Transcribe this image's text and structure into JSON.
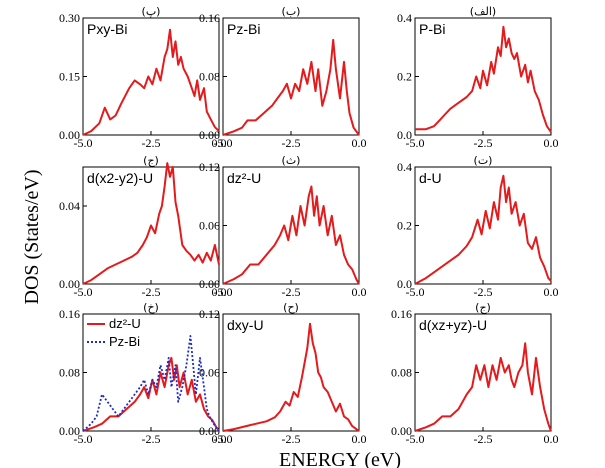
{
  "xlabel": "ENERGY (eV)",
  "ylabel": "DOS (States/eV)",
  "chart_data": [
    {
      "type": "line",
      "title": "(الف)",
      "label": "P-Bi",
      "xlim": [
        -5,
        0
      ],
      "ylim": [
        0,
        0.4
      ],
      "xticks": [
        "-5.0",
        "-2.5",
        "0.0"
      ],
      "yticks": [
        "0.0",
        "0.2",
        "0.4"
      ],
      "series": [
        {
          "name": "P-Bi",
          "color": "#e41a1c",
          "x": [
            -5.0,
            -4.6,
            -4.3,
            -4.1,
            -3.9,
            -3.7,
            -3.4,
            -3.1,
            -2.9,
            -2.75,
            -2.6,
            -2.5,
            -2.35,
            -2.2,
            -2.1,
            -1.95,
            -1.85,
            -1.75,
            -1.65,
            -1.55,
            -1.45,
            -1.35,
            -1.25,
            -1.1,
            -0.95,
            -0.85,
            -0.75,
            -0.6,
            -0.45,
            -0.3,
            -0.15,
            0.0
          ],
          "y": [
            0.02,
            0.02,
            0.03,
            0.05,
            0.07,
            0.09,
            0.11,
            0.13,
            0.15,
            0.2,
            0.16,
            0.22,
            0.17,
            0.25,
            0.21,
            0.3,
            0.27,
            0.37,
            0.3,
            0.33,
            0.28,
            0.26,
            0.28,
            0.2,
            0.24,
            0.18,
            0.22,
            0.15,
            0.12,
            0.07,
            0.03,
            0.01
          ]
        }
      ]
    },
    {
      "type": "line",
      "title": "(ب)",
      "label": "Pz-Bi",
      "xlim": [
        -5,
        0
      ],
      "ylim": [
        0,
        0.16
      ],
      "xticks": [
        "-5.0",
        "-2.5",
        "0.0"
      ],
      "yticks": [
        "0.00",
        "0.08",
        "0.16"
      ],
      "series": [
        {
          "name": "Pz-Bi",
          "color": "#e41a1c",
          "x": [
            -5.0,
            -4.6,
            -4.3,
            -4.1,
            -3.8,
            -3.5,
            -3.2,
            -3.0,
            -2.8,
            -2.65,
            -2.5,
            -2.35,
            -2.2,
            -2.05,
            -1.9,
            -1.75,
            -1.6,
            -1.5,
            -1.35,
            -1.2,
            -1.05,
            -0.95,
            -0.85,
            -0.7,
            -0.55,
            -0.45,
            -0.35,
            -0.2,
            0.0
          ],
          "y": [
            0.0,
            0.005,
            0.01,
            0.02,
            0.02,
            0.03,
            0.04,
            0.05,
            0.06,
            0.07,
            0.05,
            0.07,
            0.06,
            0.09,
            0.07,
            0.1,
            0.06,
            0.09,
            0.04,
            0.06,
            0.09,
            0.13,
            0.09,
            0.05,
            0.1,
            0.06,
            0.03,
            0.01,
            0.0
          ]
        }
      ]
    },
    {
      "type": "line",
      "title": "(پ)",
      "label": "Pxy-Bi",
      "xlim": [
        -5,
        0
      ],
      "ylim": [
        0,
        0.3
      ],
      "xticks": [
        "-5.0",
        "-2.5",
        "0.0"
      ],
      "yticks": [
        "0.00",
        "0.15",
        "0.30"
      ],
      "series": [
        {
          "name": "Pxy-Bi",
          "color": "#e41a1c",
          "x": [
            -5.0,
            -4.7,
            -4.4,
            -4.2,
            -4.0,
            -3.8,
            -3.6,
            -3.3,
            -3.1,
            -2.9,
            -2.75,
            -2.6,
            -2.45,
            -2.3,
            -2.15,
            -2.0,
            -1.9,
            -1.8,
            -1.7,
            -1.6,
            -1.5,
            -1.4,
            -1.3,
            -1.15,
            -1.0,
            -0.9,
            -0.8,
            -0.7,
            -0.55,
            -0.45,
            -0.3,
            -0.15,
            0.0
          ],
          "y": [
            0.0,
            0.01,
            0.03,
            0.07,
            0.04,
            0.05,
            0.08,
            0.12,
            0.14,
            0.13,
            0.12,
            0.15,
            0.13,
            0.17,
            0.14,
            0.2,
            0.22,
            0.27,
            0.2,
            0.24,
            0.18,
            0.2,
            0.17,
            0.15,
            0.12,
            0.1,
            0.14,
            0.09,
            0.12,
            0.06,
            0.04,
            0.02,
            0.01
          ]
        }
      ]
    },
    {
      "type": "line",
      "title": "(ت)",
      "label": "d-U",
      "xlim": [
        -5,
        0
      ],
      "ylim": [
        0,
        0.4
      ],
      "xticks": [
        "-5.0",
        "-2.5",
        "0.0"
      ],
      "yticks": [
        "0.0",
        "0.2",
        "0.4"
      ],
      "series": [
        {
          "name": "d-U",
          "color": "#e41a1c",
          "x": [
            -5.0,
            -4.6,
            -4.3,
            -4.0,
            -3.7,
            -3.4,
            -3.1,
            -2.9,
            -2.7,
            -2.55,
            -2.4,
            -2.25,
            -2.1,
            -1.95,
            -1.85,
            -1.75,
            -1.65,
            -1.55,
            -1.45,
            -1.3,
            -1.15,
            -1.0,
            -0.85,
            -0.7,
            -0.55,
            -0.4,
            -0.25,
            -0.1,
            0.0
          ],
          "y": [
            0.0,
            0.02,
            0.04,
            0.06,
            0.08,
            0.1,
            0.13,
            0.16,
            0.22,
            0.17,
            0.25,
            0.19,
            0.28,
            0.22,
            0.33,
            0.37,
            0.28,
            0.33,
            0.24,
            0.28,
            0.2,
            0.24,
            0.14,
            0.12,
            0.16,
            0.09,
            0.06,
            0.02,
            0.01
          ]
        }
      ]
    },
    {
      "type": "line",
      "title": "(ث)",
      "label": "dz²-U",
      "xlim": [
        -5,
        0
      ],
      "ylim": [
        0,
        0.12
      ],
      "xticks": [
        "-5.0",
        "-2.5",
        "0.0"
      ],
      "yticks": [
        "0.00",
        "0.06",
        "0.12"
      ],
      "series": [
        {
          "name": "dz²-U",
          "color": "#e41a1c",
          "x": [
            -5.0,
            -4.6,
            -4.3,
            -4.0,
            -3.7,
            -3.4,
            -3.1,
            -2.9,
            -2.75,
            -2.6,
            -2.45,
            -2.3,
            -2.15,
            -2.0,
            -1.85,
            -1.75,
            -1.65,
            -1.55,
            -1.45,
            -1.3,
            -1.15,
            -1.0,
            -0.85,
            -0.7,
            -0.55,
            -0.4,
            -0.25,
            -0.1,
            0.0
          ],
          "y": [
            0.0,
            0.005,
            0.01,
            0.02,
            0.02,
            0.03,
            0.04,
            0.05,
            0.06,
            0.045,
            0.07,
            0.05,
            0.08,
            0.06,
            0.09,
            0.1,
            0.07,
            0.09,
            0.06,
            0.08,
            0.05,
            0.07,
            0.04,
            0.05,
            0.03,
            0.02,
            0.015,
            0.005,
            0.0
          ]
        }
      ]
    },
    {
      "type": "line",
      "title": "(ج)",
      "label": "d(x2-y2)-U",
      "xlim": [
        -5,
        0
      ],
      "ylim": [
        0,
        0.06
      ],
      "xticks": [
        "-5.0",
        "-2.5",
        "0.0"
      ],
      "yticks": [
        "0.00",
        "0.04"
      ],
      "series": [
        {
          "name": "d(x2-y2)-U",
          "color": "#e41a1c",
          "x": [
            -5.0,
            -4.7,
            -4.4,
            -4.1,
            -3.8,
            -3.5,
            -3.2,
            -3.0,
            -2.8,
            -2.65,
            -2.5,
            -2.35,
            -2.2,
            -2.1,
            -2.0,
            -1.9,
            -1.8,
            -1.7,
            -1.6,
            -1.5,
            -1.35,
            -1.2,
            -1.05,
            -0.9,
            -0.75,
            -0.6,
            -0.45,
            -0.3,
            -0.15,
            0.0
          ],
          "y": [
            0.0,
            0.002,
            0.005,
            0.008,
            0.01,
            0.012,
            0.014,
            0.016,
            0.02,
            0.024,
            0.03,
            0.026,
            0.036,
            0.04,
            0.05,
            0.062,
            0.055,
            0.06,
            0.042,
            0.035,
            0.02,
            0.017,
            0.015,
            0.012,
            0.015,
            0.011,
            0.016,
            0.012,
            0.02,
            0.01
          ]
        }
      ]
    },
    {
      "type": "line",
      "title": "(ج)",
      "label": "d(xz+yz)-U",
      "xlim": [
        -5,
        0
      ],
      "ylim": [
        0,
        0.16
      ],
      "xticks": [
        "-5.0",
        "-2.5",
        "0.0"
      ],
      "yticks": [
        "0.00",
        "0.08",
        "0.16"
      ],
      "series": [
        {
          "name": "d(xz+yz)-U",
          "color": "#e41a1c",
          "x": [
            -5.0,
            -4.6,
            -4.3,
            -4.0,
            -3.7,
            -3.4,
            -3.1,
            -2.9,
            -2.75,
            -2.6,
            -2.45,
            -2.3,
            -2.15,
            -2.0,
            -1.85,
            -1.7,
            -1.55,
            -1.45,
            -1.35,
            -1.2,
            -1.05,
            -0.95,
            -0.85,
            -0.7,
            -0.55,
            -0.4,
            -0.25,
            -0.1,
            0.0
          ],
          "y": [
            0.0,
            0.005,
            0.01,
            0.02,
            0.02,
            0.03,
            0.05,
            0.06,
            0.09,
            0.07,
            0.09,
            0.06,
            0.09,
            0.07,
            0.1,
            0.08,
            0.09,
            0.07,
            0.06,
            0.08,
            0.09,
            0.12,
            0.08,
            0.05,
            0.1,
            0.06,
            0.03,
            0.01,
            0.0
          ]
        }
      ]
    },
    {
      "type": "line",
      "title": "(ح)",
      "label": "dxy-U",
      "xlim": [
        -5,
        0
      ],
      "ylim": [
        0,
        0.12
      ],
      "xticks": [
        "-5.0",
        "-2.5",
        "0.0"
      ],
      "yticks": [
        "0.00",
        "0.06",
        "0.12"
      ],
      "series": [
        {
          "name": "dxy-U",
          "color": "#e41a1c",
          "x": [
            -5.0,
            -4.6,
            -4.3,
            -4.0,
            -3.7,
            -3.4,
            -3.1,
            -2.9,
            -2.7,
            -2.55,
            -2.4,
            -2.25,
            -2.1,
            -2.0,
            -1.9,
            -1.8,
            -1.7,
            -1.6,
            -1.5,
            -1.4,
            -1.3,
            -1.15,
            -1.0,
            -0.85,
            -0.7,
            -0.55,
            -0.4,
            -0.25,
            -0.1,
            0.0
          ],
          "y": [
            0.0,
            0.002,
            0.004,
            0.006,
            0.008,
            0.01,
            0.014,
            0.02,
            0.03,
            0.026,
            0.04,
            0.035,
            0.055,
            0.07,
            0.085,
            0.11,
            0.09,
            0.08,
            0.06,
            0.055,
            0.045,
            0.04,
            0.03,
            0.02,
            0.028,
            0.015,
            0.012,
            0.005,
            0.002,
            0.0
          ]
        }
      ]
    },
    {
      "type": "line",
      "title": "(خ)",
      "label": "",
      "xlim": [
        -5,
        0
      ],
      "ylim": [
        0,
        0.16
      ],
      "xticks": [
        "-5.0",
        "-2.5",
        "0.0"
      ],
      "yticks": [
        "0.00",
        "0.08",
        "0.16"
      ],
      "legend": [
        "dz²-U",
        "Pz-Bi"
      ],
      "series": [
        {
          "name": "dz²-U",
          "color": "#e41a1c",
          "style": "solid",
          "x": [
            -5.0,
            -4.6,
            -4.3,
            -4.0,
            -3.7,
            -3.4,
            -3.1,
            -2.9,
            -2.75,
            -2.6,
            -2.45,
            -2.3,
            -2.15,
            -2.0,
            -1.85,
            -1.75,
            -1.65,
            -1.55,
            -1.45,
            -1.3,
            -1.15,
            -1.0,
            -0.85,
            -0.7,
            -0.55,
            -0.4,
            -0.25,
            -0.1,
            0.0
          ],
          "y": [
            0.0,
            0.005,
            0.01,
            0.02,
            0.02,
            0.03,
            0.04,
            0.05,
            0.06,
            0.045,
            0.07,
            0.05,
            0.08,
            0.06,
            0.09,
            0.1,
            0.07,
            0.09,
            0.06,
            0.08,
            0.05,
            0.07,
            0.04,
            0.05,
            0.03,
            0.02,
            0.015,
            0.005,
            0.0
          ]
        },
        {
          "name": "Pz-Bi",
          "color": "#1f2ccc",
          "style": "dotted",
          "x": [
            -5.0,
            -4.7,
            -4.5,
            -4.3,
            -4.1,
            -3.9,
            -3.7,
            -3.5,
            -3.3,
            -3.1,
            -2.9,
            -2.75,
            -2.6,
            -2.45,
            -2.3,
            -2.15,
            -2.0,
            -1.85,
            -1.75,
            -1.6,
            -1.5,
            -1.35,
            -1.2,
            -1.05,
            -0.95,
            -0.85,
            -0.7,
            -0.55,
            -0.45,
            -0.35,
            -0.2,
            0.0
          ],
          "y": [
            0.0,
            0.01,
            0.02,
            0.05,
            0.04,
            0.03,
            0.02,
            0.03,
            0.04,
            0.05,
            0.06,
            0.07,
            0.05,
            0.07,
            0.06,
            0.09,
            0.07,
            0.1,
            0.06,
            0.09,
            0.04,
            0.06,
            0.09,
            0.13,
            0.09,
            0.05,
            0.1,
            0.06,
            0.03,
            0.02,
            0.01,
            0.0
          ]
        }
      ]
    }
  ]
}
